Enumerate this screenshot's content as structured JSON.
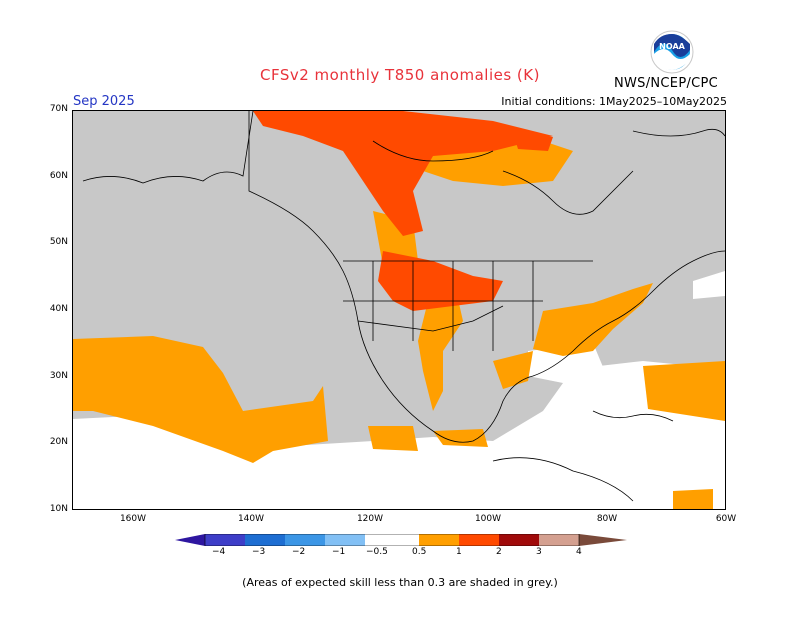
{
  "header": {
    "title": "CFSv2 monthly T850 anomalies (K)",
    "month": "Sep 2025",
    "initial_conditions": "Initial conditions: 1May2025–10May2025",
    "agency": "NWS/NCEP/CPC",
    "logo_text": "NOAA"
  },
  "map": {
    "lat_labels": [
      "70N",
      "60N",
      "50N",
      "40N",
      "30N",
      "20N",
      "10N"
    ],
    "lon_labels": [
      "160W",
      "140W",
      "120W",
      "100W",
      "80W",
      "60W"
    ]
  },
  "colorbar": {
    "ticks": [
      "−4",
      "−3",
      "−2",
      "−1",
      "−0.5",
      "0.5",
      "1",
      "2",
      "3",
      "4"
    ],
    "colors": [
      "#2e16a0",
      "#3e3ec8",
      "#1e6ed2",
      "#3c96e6",
      "#82c0f5",
      "#ffffff",
      "#ff9f00",
      "#ff4a00",
      "#e8281e",
      "#a00a0a",
      "#d4a090",
      "#7a4a3a"
    ]
  },
  "footer": {
    "note": "(Areas of expected skill less than 0.3 are shaded in grey.)"
  }
}
